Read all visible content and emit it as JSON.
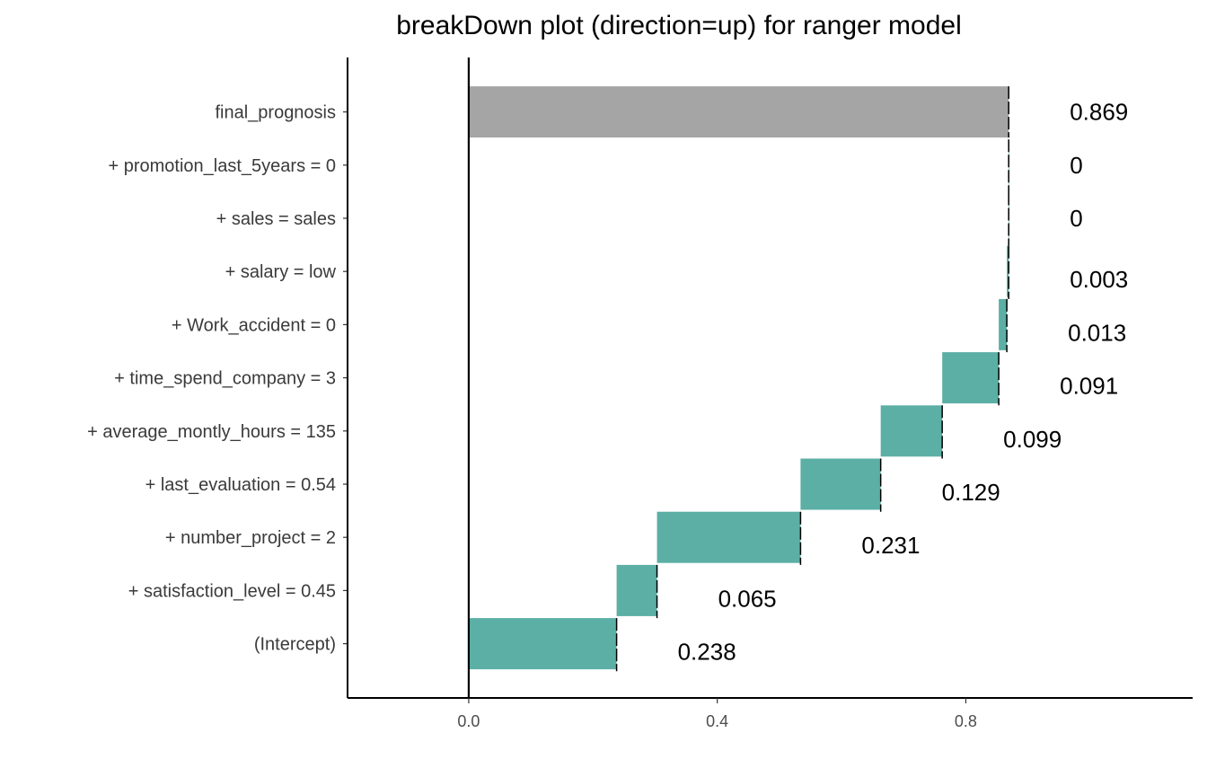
{
  "chart_data": {
    "type": "bar",
    "subtype": "waterfall-breakdown",
    "title": "breakDown plot (direction=up) for ranger model",
    "xlim": [
      -0.195,
      1.165
    ],
    "x_ticks": [
      0.0,
      0.4,
      0.8
    ],
    "x_tick_labels": [
      "0.0",
      "0.4",
      "0.8"
    ],
    "xlabel": "",
    "ylabel": "",
    "grid": false,
    "legend": "none",
    "colors": {
      "contribution": "#5BAFA5",
      "final": "#A5A5A5",
      "zero_line": "#000000",
      "axis": "#000000"
    },
    "rows": [
      {
        "label": "(Intercept)",
        "start": 0.0,
        "end": 0.238,
        "value_label": "0.238",
        "kind": "contribution"
      },
      {
        "label": "+ satisfaction_level = 0.45",
        "start": 0.238,
        "end": 0.303,
        "value_label": "0.065",
        "kind": "contribution"
      },
      {
        "label": "+ number_project = 2",
        "start": 0.303,
        "end": 0.534,
        "value_label": "0.231",
        "kind": "contribution"
      },
      {
        "label": "+ last_evaluation = 0.54",
        "start": 0.534,
        "end": 0.663,
        "value_label": "0.129",
        "kind": "contribution"
      },
      {
        "label": "+ average_montly_hours = 135",
        "start": 0.663,
        "end": 0.762,
        "value_label": "0.099",
        "kind": "contribution"
      },
      {
        "label": "+ time_spend_company = 3",
        "start": 0.762,
        "end": 0.853,
        "value_label": "0.091",
        "kind": "contribution"
      },
      {
        "label": "+ Work_accident = 0",
        "start": 0.853,
        "end": 0.866,
        "value_label": "0.013",
        "kind": "contribution"
      },
      {
        "label": "+ salary = low",
        "start": 0.866,
        "end": 0.869,
        "value_label": "0.003",
        "kind": "contribution"
      },
      {
        "label": "+ sales = sales",
        "start": 0.869,
        "end": 0.869,
        "value_label": "0",
        "kind": "contribution"
      },
      {
        "label": "+ promotion_last_5years = 0",
        "start": 0.869,
        "end": 0.869,
        "value_label": "0",
        "kind": "contribution"
      },
      {
        "label": "final_prognosis",
        "start": 0.0,
        "end": 0.869,
        "value_label": "0.869",
        "kind": "final"
      }
    ]
  }
}
